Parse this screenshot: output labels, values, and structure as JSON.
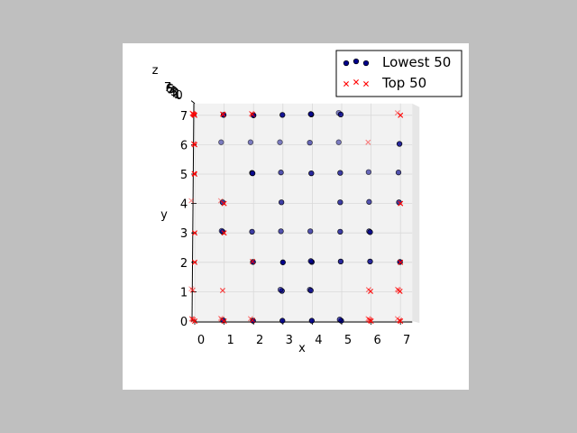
{
  "colors": {
    "background": "#bfbfbf",
    "figure": "#ffffff",
    "pane": "#f2f2f2",
    "grid": "#d9d9d9",
    "lowest_fill": "#00008b",
    "top_color": "#ff0000"
  },
  "chart_data": {
    "type": "scatter",
    "projection": "3d",
    "xlabel": "x",
    "ylabel": "y",
    "zlabel": "z",
    "xlim": [
      0,
      7
    ],
    "ylim": [
      0,
      7
    ],
    "zlim": [
      0,
      7
    ],
    "x_ticks": [
      "0",
      "1",
      "2",
      "3",
      "4",
      "5",
      "6",
      "7"
    ],
    "y_ticks": [
      "0",
      "1",
      "2",
      "3",
      "4",
      "5",
      "6",
      "7"
    ],
    "z_ticks": [
      "7",
      "6",
      "5",
      "4",
      "3",
      "2",
      "1",
      "0"
    ],
    "grid": true,
    "legend": "top-right",
    "series": [
      {
        "name": "Lowest 50",
        "marker": "circle",
        "points": [
          [
            1,
            7,
            1
          ],
          [
            2,
            7,
            0
          ],
          [
            3,
            7,
            1
          ],
          [
            4,
            7,
            2
          ],
          [
            5,
            7,
            6
          ],
          [
            1,
            6,
            6
          ],
          [
            2,
            6,
            6
          ],
          [
            3,
            6,
            6
          ],
          [
            4,
            6,
            5
          ],
          [
            5,
            6,
            6
          ],
          [
            2,
            5,
            3
          ],
          [
            3,
            5,
            4
          ],
          [
            4,
            5,
            2
          ],
          [
            5,
            5,
            3
          ],
          [
            6,
            5,
            5
          ],
          [
            7,
            5,
            4
          ],
          [
            1,
            4,
            3
          ],
          [
            3,
            4,
            3
          ],
          [
            5,
            4,
            3
          ],
          [
            7,
            4,
            3
          ],
          [
            1,
            3,
            3
          ],
          [
            1,
            3,
            5
          ],
          [
            2,
            3,
            3
          ],
          [
            3,
            3,
            4
          ],
          [
            4,
            3,
            4
          ],
          [
            5,
            3,
            3
          ],
          [
            6,
            3,
            4
          ],
          [
            3,
            2,
            0
          ],
          [
            4,
            2,
            1
          ],
          [
            5,
            2,
            2
          ],
          [
            6,
            2,
            2
          ],
          [
            7,
            2,
            1
          ],
          [
            3,
            1,
            2
          ],
          [
            3,
            1,
            5
          ],
          [
            4,
            1,
            5
          ],
          [
            4,
            1,
            3
          ],
          [
            1,
            0,
            2
          ],
          [
            2,
            0,
            1
          ],
          [
            3,
            0,
            1
          ],
          [
            4,
            0,
            1
          ],
          [
            5,
            0,
            1
          ],
          [
            5,
            0,
            4
          ],
          [
            2,
            5,
            2
          ],
          [
            4,
            7,
            3
          ],
          [
            6,
            4,
            4
          ],
          [
            7,
            6,
            2
          ],
          [
            5,
            7,
            2
          ],
          [
            6,
            3,
            2
          ],
          [
            4,
            2,
            3
          ],
          [
            2,
            2,
            1
          ]
        ]
      },
      {
        "name": "Top 50",
        "marker": "x",
        "points": [
          [
            0,
            7,
            0
          ],
          [
            0,
            7,
            1
          ],
          [
            0,
            7,
            2
          ],
          [
            0,
            7,
            3
          ],
          [
            0,
            7,
            4
          ],
          [
            0,
            7,
            5
          ],
          [
            1,
            7,
            2
          ],
          [
            1,
            7,
            3
          ],
          [
            2,
            7,
            2
          ],
          [
            2,
            7,
            4
          ],
          [
            7,
            7,
            0
          ],
          [
            7,
            7,
            6
          ],
          [
            0,
            6,
            0
          ],
          [
            0,
            6,
            2
          ],
          [
            6,
            6,
            6
          ],
          [
            0,
            5,
            1
          ],
          [
            0,
            5,
            0
          ],
          [
            1,
            4,
            0
          ],
          [
            7,
            4,
            0
          ],
          [
            0,
            4,
            7
          ],
          [
            1,
            4,
            7
          ],
          [
            0,
            3,
            0
          ],
          [
            1,
            3,
            0
          ],
          [
            0,
            2,
            0
          ],
          [
            2,
            2,
            2
          ],
          [
            7,
            2,
            0
          ],
          [
            0,
            1,
            7
          ],
          [
            0,
            1,
            4
          ],
          [
            1,
            1,
            3
          ],
          [
            6,
            1,
            1
          ],
          [
            6,
            1,
            5
          ],
          [
            7,
            1,
            1
          ],
          [
            7,
            1,
            4
          ],
          [
            7,
            1,
            6
          ],
          [
            0,
            0,
            0
          ],
          [
            0,
            0,
            3
          ],
          [
            0,
            0,
            6
          ],
          [
            1,
            0,
            0
          ],
          [
            1,
            0,
            5
          ],
          [
            1,
            0,
            7
          ],
          [
            2,
            0,
            2
          ],
          [
            2,
            0,
            6
          ],
          [
            6,
            0,
            2
          ],
          [
            6,
            0,
            0
          ],
          [
            6,
            0,
            4
          ],
          [
            7,
            0,
            0
          ],
          [
            7,
            0,
            2
          ],
          [
            7,
            0,
            6
          ],
          [
            6,
            0,
            6
          ],
          [
            0,
            0,
            5
          ]
        ]
      }
    ]
  }
}
